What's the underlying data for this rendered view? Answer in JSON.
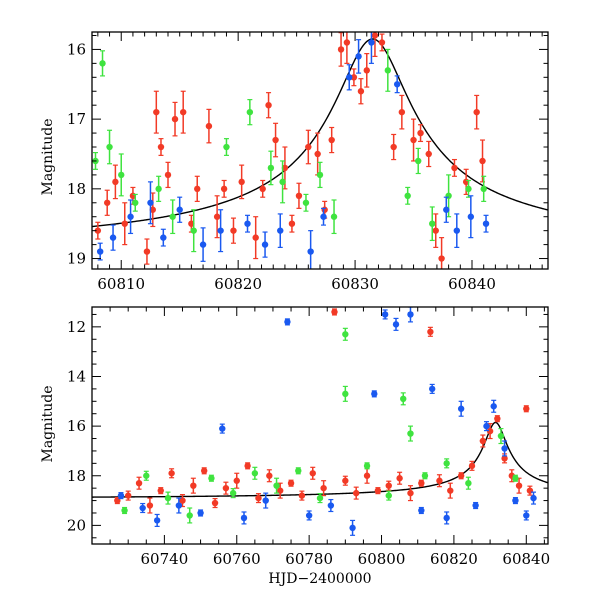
{
  "chart_data": [
    {
      "type": "scatter",
      "title": "",
      "xlabel": "",
      "ylabel": "Magnitude",
      "xlim": [
        60807.5,
        60846.5
      ],
      "ylim": [
        19.15,
        15.75
      ],
      "y_inverted": true,
      "x_ticks": [
        60810,
        60820,
        60830,
        60840
      ],
      "y_ticks": [
        16,
        17,
        18,
        19
      ],
      "series": [
        {
          "color": "#f23a26",
          "points": [
            [
              60808.0,
              18.6
            ],
            [
              60808.8,
              18.2
            ],
            [
              60809.5,
              17.9
            ],
            [
              60810.3,
              18.5
            ],
            [
              60811.0,
              18.1
            ],
            [
              60812.2,
              18.9
            ],
            [
              60812.7,
              18.3
            ],
            [
              60813.0,
              16.9
            ],
            [
              60813.4,
              17.4
            ],
            [
              60814.0,
              17.8
            ],
            [
              60814.6,
              17.0
            ],
            [
              60815.3,
              16.9
            ],
            [
              60816.0,
              18.5
            ],
            [
              60816.5,
              18.0
            ],
            [
              60817.5,
              17.1
            ],
            [
              60818.2,
              18.4
            ],
            [
              60818.8,
              18.0
            ],
            [
              60819.6,
              18.6
            ],
            [
              60820.3,
              17.9
            ],
            [
              60821.5,
              18.7
            ],
            [
              60822.1,
              18.0
            ],
            [
              60822.6,
              16.8
            ],
            [
              60823.2,
              17.3
            ],
            [
              60824.0,
              17.7
            ],
            [
              60824.6,
              18.5
            ],
            [
              60825.2,
              18.1
            ],
            [
              60826.0,
              17.4
            ],
            [
              60826.8,
              17.5
            ],
            [
              60827.4,
              18.3
            ],
            [
              60828.0,
              17.3
            ],
            [
              60828.8,
              16.0
            ],
            [
              60829.3,
              15.9
            ],
            [
              60829.9,
              16.4
            ],
            [
              60830.5,
              16.6
            ],
            [
              60831.0,
              16.3
            ],
            [
              60831.7,
              15.8
            ],
            [
              60832.3,
              15.9
            ],
            [
              60833.3,
              17.4
            ],
            [
              60834.0,
              16.9
            ],
            [
              60835.0,
              17.3
            ],
            [
              60835.6,
              17.2
            ],
            [
              60836.3,
              17.5
            ],
            [
              60836.9,
              18.6
            ],
            [
              60837.4,
              19.0
            ],
            [
              60838.5,
              17.7
            ],
            [
              60839.5,
              17.9
            ],
            [
              60840.4,
              16.9
            ],
            [
              60840.9,
              17.6
            ]
          ]
        },
        {
          "color": "#3fe33f",
          "points": [
            [
              60807.8,
              17.6
            ],
            [
              60808.4,
              16.2
            ],
            [
              60809.0,
              17.4
            ],
            [
              60810.0,
              17.8
            ],
            [
              60811.2,
              18.2
            ],
            [
              60813.2,
              18.0
            ],
            [
              60814.4,
              18.4
            ],
            [
              60816.2,
              18.6
            ],
            [
              60819.0,
              17.4
            ],
            [
              60821.0,
              16.9
            ],
            [
              60822.8,
              17.7
            ],
            [
              60823.8,
              17.9
            ],
            [
              60825.8,
              18.2
            ],
            [
              60827.0,
              17.8
            ],
            [
              60828.2,
              18.4
            ],
            [
              60832.8,
              16.3
            ],
            [
              60834.5,
              18.1
            ],
            [
              60835.4,
              17.6
            ],
            [
              60836.6,
              18.5
            ],
            [
              60838.0,
              18.1
            ],
            [
              60839.7,
              18.0
            ],
            [
              60841.0,
              18.0
            ]
          ]
        },
        {
          "color": "#1a59f0",
          "points": [
            [
              60808.2,
              18.9
            ],
            [
              60809.3,
              18.7
            ],
            [
              60810.8,
              18.4
            ],
            [
              60812.5,
              18.2
            ],
            [
              60813.6,
              18.7
            ],
            [
              60815.0,
              18.3
            ],
            [
              60817.0,
              18.8
            ],
            [
              60818.5,
              18.6
            ],
            [
              60820.8,
              18.5
            ],
            [
              60822.3,
              18.8
            ],
            [
              60823.6,
              18.6
            ],
            [
              60826.2,
              18.9
            ],
            [
              60827.3,
              18.4
            ],
            [
              60829.5,
              16.4
            ],
            [
              60830.3,
              16.1
            ],
            [
              60831.4,
              15.9
            ],
            [
              60833.6,
              16.5
            ],
            [
              60837.8,
              18.3
            ],
            [
              60838.7,
              18.6
            ],
            [
              60839.9,
              18.4
            ],
            [
              60841.2,
              18.5
            ]
          ]
        }
      ]
    },
    {
      "type": "scatter",
      "title": "",
      "xlabel": "HJD−2400000",
      "ylabel": "Magnitude",
      "xlim": [
        60720,
        60846
      ],
      "ylim": [
        20.75,
        11.2
      ],
      "y_inverted": true,
      "x_ticks": [
        60740,
        60760,
        60780,
        60800,
        60820,
        60840
      ],
      "y_ticks": [
        12,
        14,
        16,
        18,
        20
      ],
      "series": [
        {
          "color": "#f23a26",
          "points": [
            [
              60727,
              19.0
            ],
            [
              60730,
              18.8
            ],
            [
              60733,
              18.3
            ],
            [
              60736,
              19.2
            ],
            [
              60739,
              18.6
            ],
            [
              60742,
              17.9
            ],
            [
              60745,
              19.0
            ],
            [
              60748,
              18.4
            ],
            [
              60751,
              17.8
            ],
            [
              60754,
              19.1
            ],
            [
              60757,
              18.5
            ],
            [
              60760,
              18.2
            ],
            [
              60763,
              17.6
            ],
            [
              60766,
              18.9
            ],
            [
              60769,
              18.0
            ],
            [
              60772,
              18.6
            ],
            [
              60775,
              18.3
            ],
            [
              60778,
              18.8
            ],
            [
              60781,
              17.9
            ],
            [
              60784,
              18.5
            ],
            [
              60787,
              11.4
            ],
            [
              60790,
              18.2
            ],
            [
              60793,
              18.7
            ],
            [
              60796,
              18.0
            ],
            [
              60799,
              18.6
            ],
            [
              60802,
              18.4
            ],
            [
              60805,
              18.1
            ],
            [
              60808,
              18.7
            ],
            [
              60811,
              18.3
            ],
            [
              60813.5,
              12.2
            ],
            [
              60816,
              18.2
            ],
            [
              60819,
              18.6
            ],
            [
              60822,
              18.0
            ],
            [
              60825,
              17.6
            ],
            [
              60828,
              16.6
            ],
            [
              60830,
              16.2
            ],
            [
              60832,
              15.7
            ],
            [
              60834,
              17.3
            ],
            [
              60836,
              18.0
            ],
            [
              60838,
              18.4
            ],
            [
              60840,
              15.3
            ],
            [
              60841,
              18.6
            ]
          ]
        },
        {
          "color": "#3fe33f",
          "points": [
            [
              60729,
              19.4
            ],
            [
              60735,
              18.0
            ],
            [
              60741,
              18.9
            ],
            [
              60747,
              19.6
            ],
            [
              60753,
              18.1
            ],
            [
              60759,
              18.7
            ],
            [
              60765,
              17.9
            ],
            [
              60771,
              18.4
            ],
            [
              60777,
              17.8
            ],
            [
              60783,
              18.9
            ],
            [
              60790,
              12.3
            ],
            [
              60790,
              14.7
            ],
            [
              60796,
              17.6
            ],
            [
              60802,
              18.8
            ],
            [
              60806,
              14.9
            ],
            [
              60808,
              16.3
            ],
            [
              60812,
              18.0
            ],
            [
              60818,
              17.5
            ],
            [
              60824,
              18.3
            ],
            [
              60833,
              16.4
            ],
            [
              60837,
              18.1
            ]
          ]
        },
        {
          "color": "#1a59f0",
          "points": [
            [
              60728,
              18.8
            ],
            [
              60734,
              19.3
            ],
            [
              60738,
              19.8
            ],
            [
              60744,
              19.2
            ],
            [
              60750,
              19.5
            ],
            [
              60756,
              16.1
            ],
            [
              60762,
              19.7
            ],
            [
              60768,
              19.0
            ],
            [
              60774,
              11.8
            ],
            [
              60780,
              19.6
            ],
            [
              60786,
              19.2
            ],
            [
              60792,
              20.1
            ],
            [
              60798,
              14.7
            ],
            [
              60801,
              11.5
            ],
            [
              60804,
              11.9
            ],
            [
              60808,
              11.5
            ],
            [
              60811,
              19.4
            ],
            [
              60814,
              14.5
            ],
            [
              60818,
              19.7
            ],
            [
              60822,
              15.3
            ],
            [
              60826,
              19.2
            ],
            [
              60829,
              16.0
            ],
            [
              60831,
              15.2
            ],
            [
              60834,
              16.9
            ],
            [
              60837,
              19.0
            ],
            [
              60840,
              19.6
            ],
            [
              60842,
              18.9
            ]
          ]
        }
      ]
    }
  ]
}
